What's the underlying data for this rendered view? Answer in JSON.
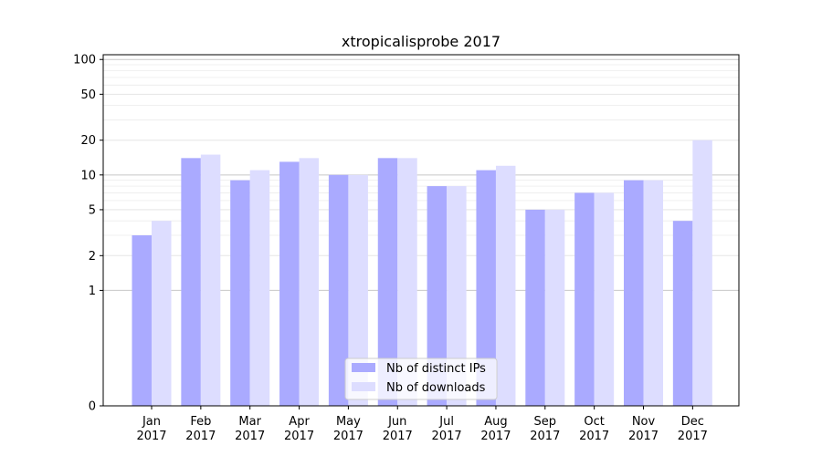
{
  "chart_data": {
    "type": "bar",
    "title": "xtropicalisprobe 2017",
    "xlabel": "",
    "ylabel": "",
    "yscale": "symlog",
    "ylim": [
      0,
      110
    ],
    "yticks": [
      0,
      1,
      2,
      5,
      10,
      20,
      50,
      100
    ],
    "grid": true,
    "legend_position": "bottom-center",
    "categories": [
      "Jan\n2017",
      "Feb\n2017",
      "Mar\n2017",
      "Apr\n2017",
      "May\n2017",
      "Jun\n2017",
      "Jul\n2017",
      "Aug\n2017",
      "Sep\n2017",
      "Oct\n2017",
      "Nov\n2017",
      "Dec\n2017"
    ],
    "series": [
      {
        "name": "Nb of distinct IPs",
        "color": "#aaaaff",
        "values": [
          3,
          14,
          9,
          13,
          10,
          14,
          8,
          11,
          5,
          7,
          9,
          4
        ]
      },
      {
        "name": "Nb of downloads",
        "color": "#ddddff",
        "values": [
          4,
          15,
          11,
          14,
          10,
          14,
          8,
          12,
          5,
          7,
          9,
          20
        ]
      }
    ]
  }
}
